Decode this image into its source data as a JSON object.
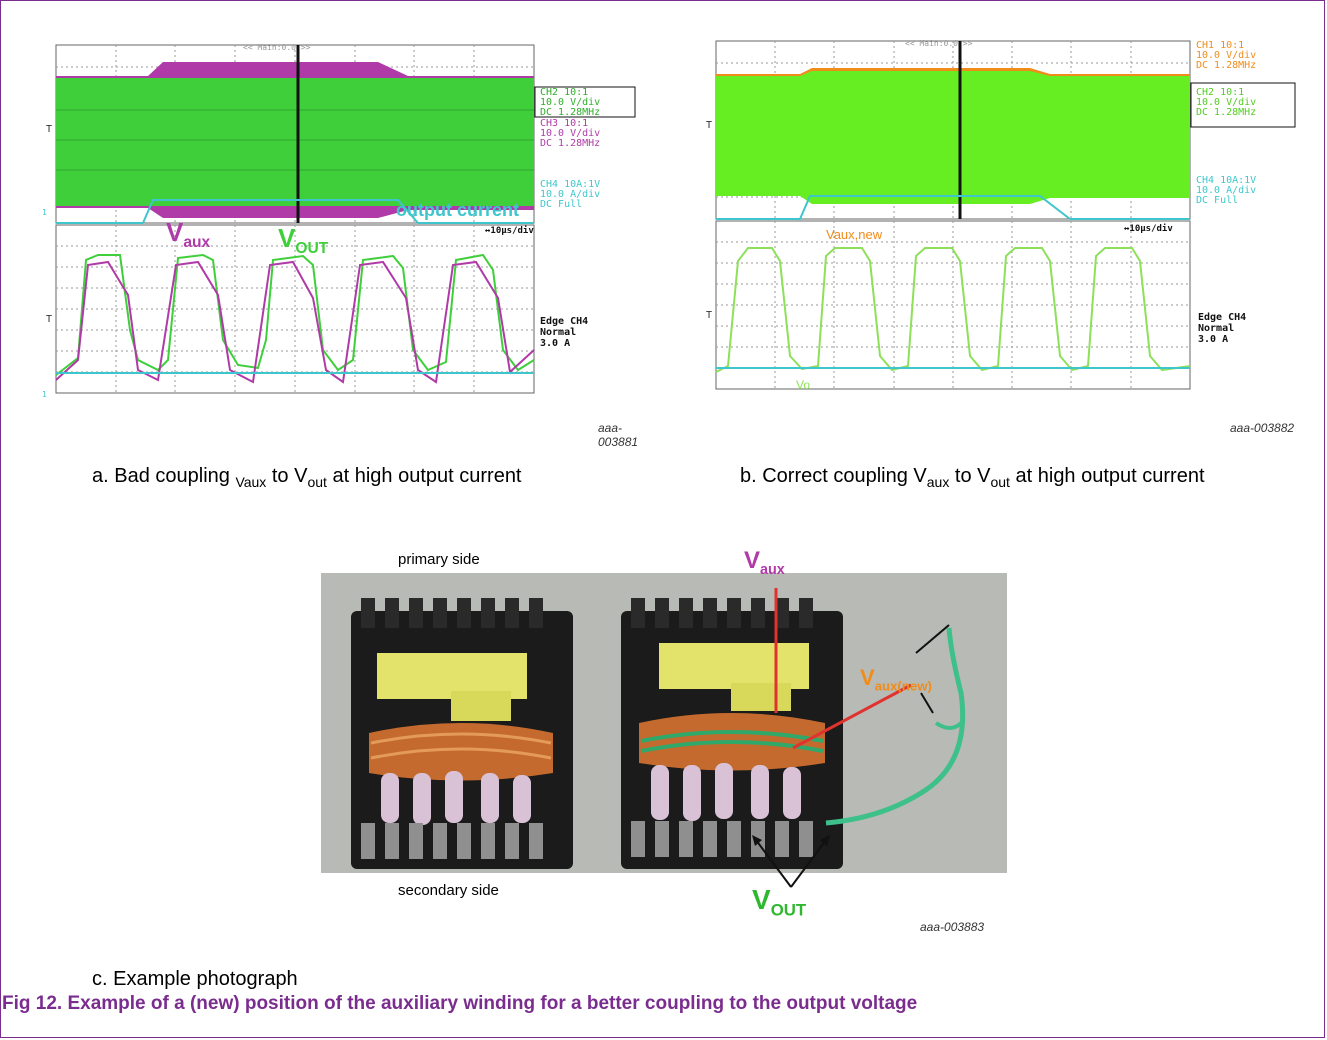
{
  "scope_a": {
    "top_label": "<< Main:0.0 >>",
    "ch2": [
      "CH2 10:1",
      "10.0 V/div",
      "DC   1.28MHz"
    ],
    "ch3": [
      "CH3 10:1",
      "10.0 V/div",
      "DC   1.28MHz"
    ],
    "ch4": [
      "CH4 10A:1V",
      "10.0 A/div",
      "DC   Full"
    ],
    "timebase": "↔10μs/div",
    "trigger": [
      "Edge CH4",
      "Normal",
      "3.0 A"
    ],
    "label_vaux": "V",
    "label_vaux_sub": "aux",
    "label_vout": "V",
    "label_vout_sub": "OUT",
    "label_current": "output current",
    "id": "aaa-003881",
    "colors": {
      "green": "#3fcf3a",
      "magenta": "#b03aa8",
      "cyan": "#3ec6cc"
    }
  },
  "scope_b": {
    "top_label": "<< Main:0.0 >>",
    "ch1": [
      "CH1 10:1",
      "10.0 V/div",
      "DC   1.28MHz"
    ],
    "ch2": [
      "CH2 10:1",
      "10.0 V/div",
      "DC   1.28MHz"
    ],
    "ch4": [
      "CH4 10A:1V",
      "10.0 A/div",
      "DC   Full"
    ],
    "timebase": "↔10μs/div",
    "trigger": [
      "Edge CH4",
      "Normal",
      "3.0 A"
    ],
    "label_vaux_new": "Vaux,new",
    "label_vo": "Vo",
    "id": "aaa-003882",
    "colors": {
      "green": "#66ee22",
      "orange": "#f08c1a",
      "cyan": "#3ec6cc"
    }
  },
  "captions": {
    "a_prefix": "a.  Bad coupling ",
    "a_sub1": "Vaux",
    "a_mid": " to V",
    "a_sub2": "out",
    "a_suffix": " at high output current",
    "b_prefix": "b.  Correct coupling V",
    "b_sub1": "aux",
    "b_mid": " to V",
    "b_sub2": "out",
    "b_suffix": " at high output current",
    "c": "c.  Example photograph"
  },
  "photo": {
    "primary_side": "primary side",
    "secondary_side": "secondary side",
    "vaux": "V",
    "vaux_sub": "aux",
    "vaux_new": "V",
    "vaux_new_sub": "aux(new)",
    "vout": "V",
    "vout_sub": "OUT",
    "id": "aaa-003883"
  },
  "figure_title": "Fig 12.  Example of a (new) position of the auxiliary winding for a better coupling to the output voltage"
}
